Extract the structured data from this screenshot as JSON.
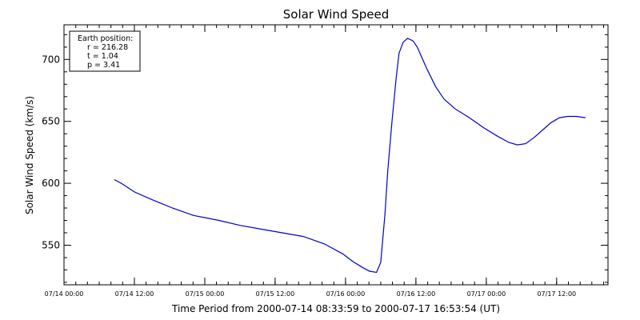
{
  "chart_data": {
    "type": "line",
    "title": "Solar Wind Speed",
    "xlabel": "Time Period from 2000-07-14 08:33:59 to 2000-07-17 16:53:54 (UT)",
    "ylabel": "Solar Wind Speed (km/s)",
    "xlim": [
      "2000-07-14 00:00",
      "2000-07-17 20:45"
    ],
    "ylim": [
      518,
      728
    ],
    "y_ticks": [
      550,
      600,
      650,
      700
    ],
    "y_tick_labels": [
      "550",
      "600",
      "650",
      "700"
    ],
    "x_ticks": [
      "2000-07-14 00:00",
      "2000-07-14 12:00",
      "2000-07-15 00:00",
      "2000-07-15 12:00",
      "2000-07-16 00:00",
      "2000-07-16 12:00",
      "2000-07-17 00:00",
      "2000-07-17 12:00"
    ],
    "x_tick_labels": [
      "07/14 00:00",
      "07/14 12:00",
      "07/15 00:00",
      "07/15 12:00",
      "07/16 00:00",
      "07/16 12:00",
      "07/17 00:00",
      "07/17 12:00"
    ],
    "grid": false,
    "line_color": "#0000cc",
    "series": [
      {
        "x": [
          "2000-07-14 08:34",
          "2000-07-14 09:46",
          "2000-07-14 12:00",
          "2000-07-14 14:53",
          "2000-07-14 18:29",
          "2000-07-14 22:05",
          "2000-07-15 02:24",
          "2000-07-15 06:00",
          "2000-07-15 09:36",
          "2000-07-15 13:12",
          "2000-07-15 16:48",
          "2000-07-15 20:24",
          "2000-07-15 23:31",
          "2000-07-16 01:12",
          "2000-07-16 02:53",
          "2000-07-16 04:05",
          "2000-07-16 05:17",
          "2000-07-16 06:00",
          "2000-07-16 06:43",
          "2000-07-16 07:12",
          "2000-07-16 07:55",
          "2000-07-16 08:38",
          "2000-07-16 09:07",
          "2000-07-16 09:50",
          "2000-07-16 10:34",
          "2000-07-16 11:31",
          "2000-07-16 12:14",
          "2000-07-16 12:58",
          "2000-07-16 13:55",
          "2000-07-16 15:22",
          "2000-07-16 16:48",
          "2000-07-16 18:43",
          "2000-07-16 21:07",
          "2000-07-16 23:31",
          "2000-07-17 01:55",
          "2000-07-17 03:50",
          "2000-07-17 05:17",
          "2000-07-17 06:43",
          "2000-07-17 08:10",
          "2000-07-17 09:36",
          "2000-07-17 11:02",
          "2000-07-17 12:29",
          "2000-07-17 13:55",
          "2000-07-17 15:22",
          "2000-07-17 16:54"
        ],
        "y": [
          603,
          600,
          593,
          587,
          580,
          574,
          570,
          566,
          563,
          560,
          557,
          551,
          543,
          537,
          532,
          529,
          528,
          536,
          575,
          610,
          650,
          685,
          705,
          714,
          717,
          715,
          710,
          702,
          692,
          678,
          668,
          660,
          653,
          645,
          638,
          633,
          631,
          632,
          637,
          643,
          649,
          653,
          654,
          654,
          653
        ]
      }
    ]
  },
  "annotation": {
    "heading": "Earth position:",
    "lines": [
      "r = 216.28",
      "t = 1.04",
      "p = 3.41"
    ]
  }
}
